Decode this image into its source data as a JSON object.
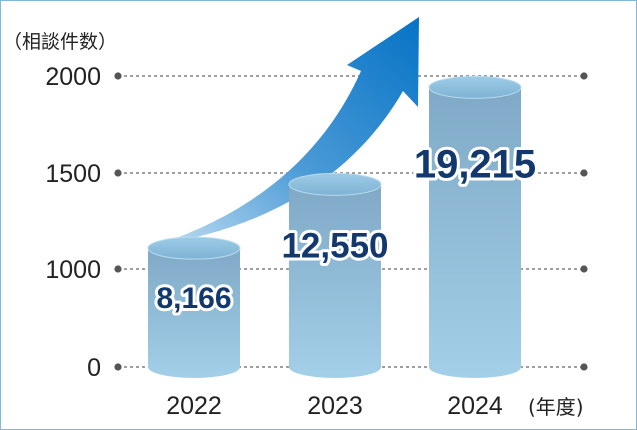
{
  "chart_data": {
    "type": "bar",
    "unit_label": "（相談件数）",
    "categories": [
      "2022",
      "2023",
      "2024"
    ],
    "x_unit_label": "(年度)",
    "values": [
      8166,
      12550,
      19215
    ],
    "data_labels": [
      "8,166",
      "12,550",
      "19,215"
    ],
    "ylim": [
      0,
      2000
    ],
    "y_ticks": [
      "0",
      "1000",
      "1500",
      "2000"
    ],
    "grid": true,
    "colors": {
      "bar_top": "#85b9d8",
      "bar_bottom": "#a8d3ea",
      "label_text": "#12386e",
      "arrow_dark": "#0a78c8",
      "arrow_light": "#b5d7ef",
      "grid_line": "#666666"
    }
  }
}
